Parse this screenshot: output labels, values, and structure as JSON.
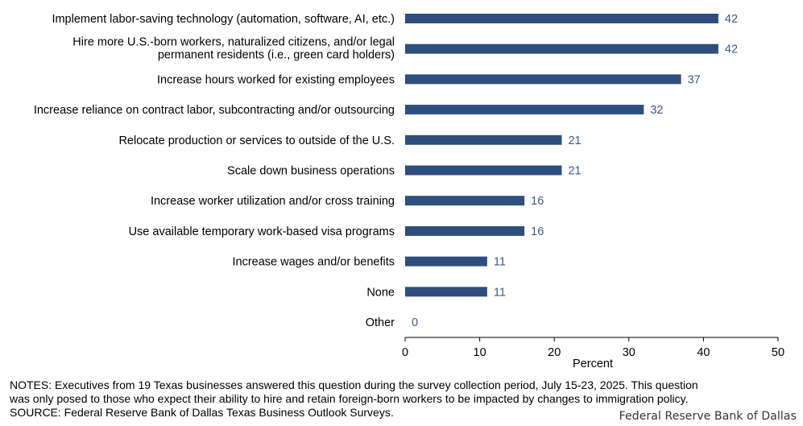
{
  "chart_data": {
    "type": "bar",
    "orientation": "horizontal",
    "categories": [
      [
        "Implement labor-saving technology (automation, software, AI, etc.)"
      ],
      [
        "Hire more U.S.-born workers, naturalized citizens, and/or legal",
        "permanent residents (i.e., green card holders)"
      ],
      [
        "Increase hours worked for existing employees"
      ],
      [
        "Increase reliance on contract labor, subcontracting and/or outsourcing"
      ],
      [
        "Relocate production or services to outside of the U.S."
      ],
      [
        "Scale down business operations"
      ],
      [
        "Increase worker utilization and/or cross training"
      ],
      [
        "Use available temporary work-based visa programs"
      ],
      [
        "Increase wages and/or benefits "
      ],
      [
        "None"
      ],
      [
        "Other"
      ]
    ],
    "values": [
      42,
      42,
      37,
      32,
      21,
      21,
      16,
      16,
      11,
      11,
      0
    ],
    "xlabel": "Percent",
    "xlim": [
      0,
      50
    ],
    "xticks": [
      0,
      10,
      20,
      30,
      40,
      50
    ],
    "bar_color": "#2e4e7e",
    "label_color": "#3b5a8a",
    "grid": false
  },
  "notes": {
    "line1": "NOTES: Executives from 19 Texas businesses answered this question during the survey collection period, July 15-23, 2025. This question",
    "line2": "was only posed to those who expect their ability to hire and retain foreign-born workers to be impacted by changes to immigration policy.",
    "source": "SOURCE: Federal Reserve Bank of Dallas Texas Business Outlook Surveys."
  },
  "brand": "Federal Reserve Bank of Dallas"
}
